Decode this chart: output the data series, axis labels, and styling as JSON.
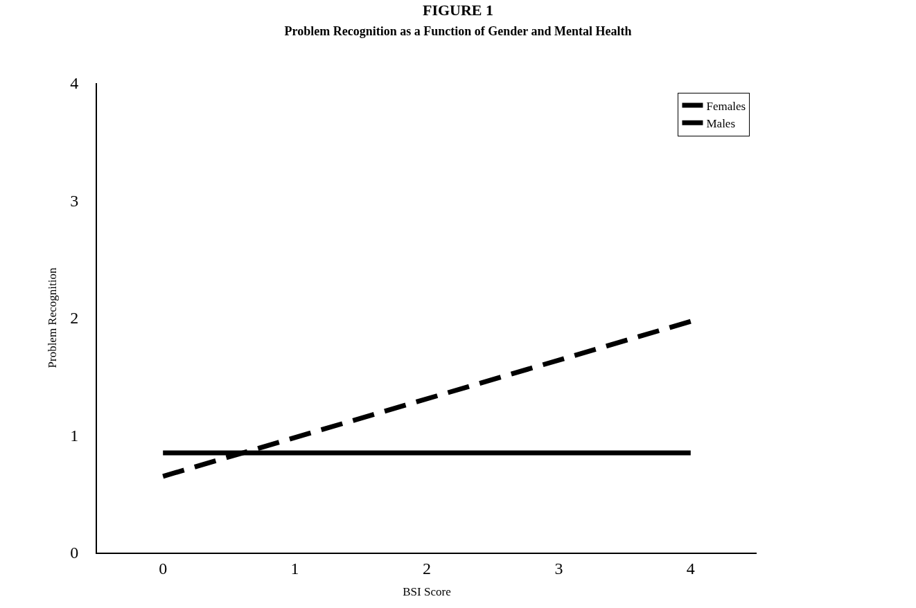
{
  "chart_data": {
    "type": "line",
    "title": "FIGURE 1",
    "subtitle": "Problem Recognition as a Function of Gender and Mental Health",
    "xlabel": "BSI Score",
    "ylabel": "Problem Recognition",
    "x": [
      0,
      4
    ],
    "series": [
      {
        "name": "Females",
        "color": "#000000",
        "values": [
          0.65,
          1.97
        ],
        "line_style": "dashed"
      },
      {
        "name": "Males",
        "color": "#000000",
        "values": [
          0.85,
          0.85
        ],
        "line_style": "solid"
      }
    ],
    "xlim": [
      -0.5,
      4.5
    ],
    "xticks": [
      0,
      1,
      2,
      3,
      4
    ],
    "ylim": [
      0,
      4
    ],
    "yticks": [
      0,
      1,
      2,
      3,
      4
    ],
    "legend": "top right",
    "marker": "none"
  }
}
